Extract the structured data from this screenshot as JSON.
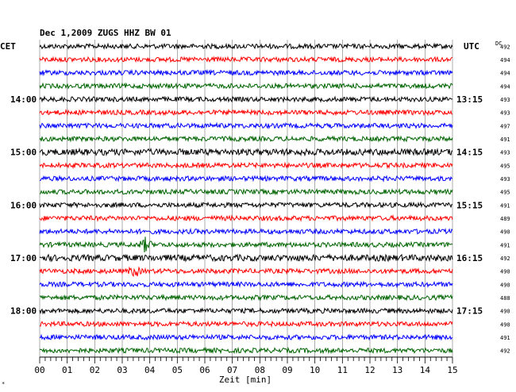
{
  "chart_data": {
    "type": "line",
    "title": "Dec 1,2009   ZUGS HHZ BW 01",
    "left_label": "CET",
    "right_label": "UTC",
    "dc_header": "DC",
    "xlabel": "Zeit [min]",
    "xlim": [
      0,
      15
    ],
    "x_ticks": [
      "00",
      "01",
      "02",
      "03",
      "04",
      "05",
      "06",
      "07",
      "08",
      "09",
      "10",
      "11",
      "12",
      "13",
      "14",
      "15"
    ],
    "x_major_step_min": 1,
    "x_minor_step_min": 0.2,
    "grid": "vertical-only",
    "line_colors": [
      "#000000",
      "#ff0000",
      "#0000ff",
      "#006400"
    ],
    "left_time_labels": [
      {
        "line": 4,
        "text": "14:00"
      },
      {
        "line": 8,
        "text": "15:00"
      },
      {
        "line": 12,
        "text": "16:00"
      },
      {
        "line": 16,
        "text": "17:00"
      },
      {
        "line": 20,
        "text": "18:00"
      }
    ],
    "right_time_labels": [
      {
        "line": 4,
        "text": "13:15"
      },
      {
        "line": 8,
        "text": "14:15"
      },
      {
        "line": 12,
        "text": "15:15"
      },
      {
        "line": 16,
        "text": "16:15"
      },
      {
        "line": 20,
        "text": "17:15"
      }
    ],
    "dc_values": [
      "492",
      "494",
      "494",
      "494",
      "493",
      "493",
      "497",
      "491",
      "493",
      "495",
      "493",
      "495",
      "491",
      "489",
      "490",
      "491",
      "492",
      "490",
      "490",
      "488",
      "490",
      "490",
      "491",
      "492"
    ],
    "trace_amplitude": [
      3,
      3,
      3,
      3,
      3,
      3,
      3,
      3,
      4,
      3,
      3,
      3,
      3,
      3,
      3,
      3,
      4,
      3,
      3,
      3,
      3,
      3,
      3,
      3
    ],
    "events": [
      {
        "line": 15,
        "minute": 3.85,
        "amplitude": 8
      },
      {
        "line": 17,
        "minute": 3.45,
        "amplitude": 6
      }
    ]
  }
}
